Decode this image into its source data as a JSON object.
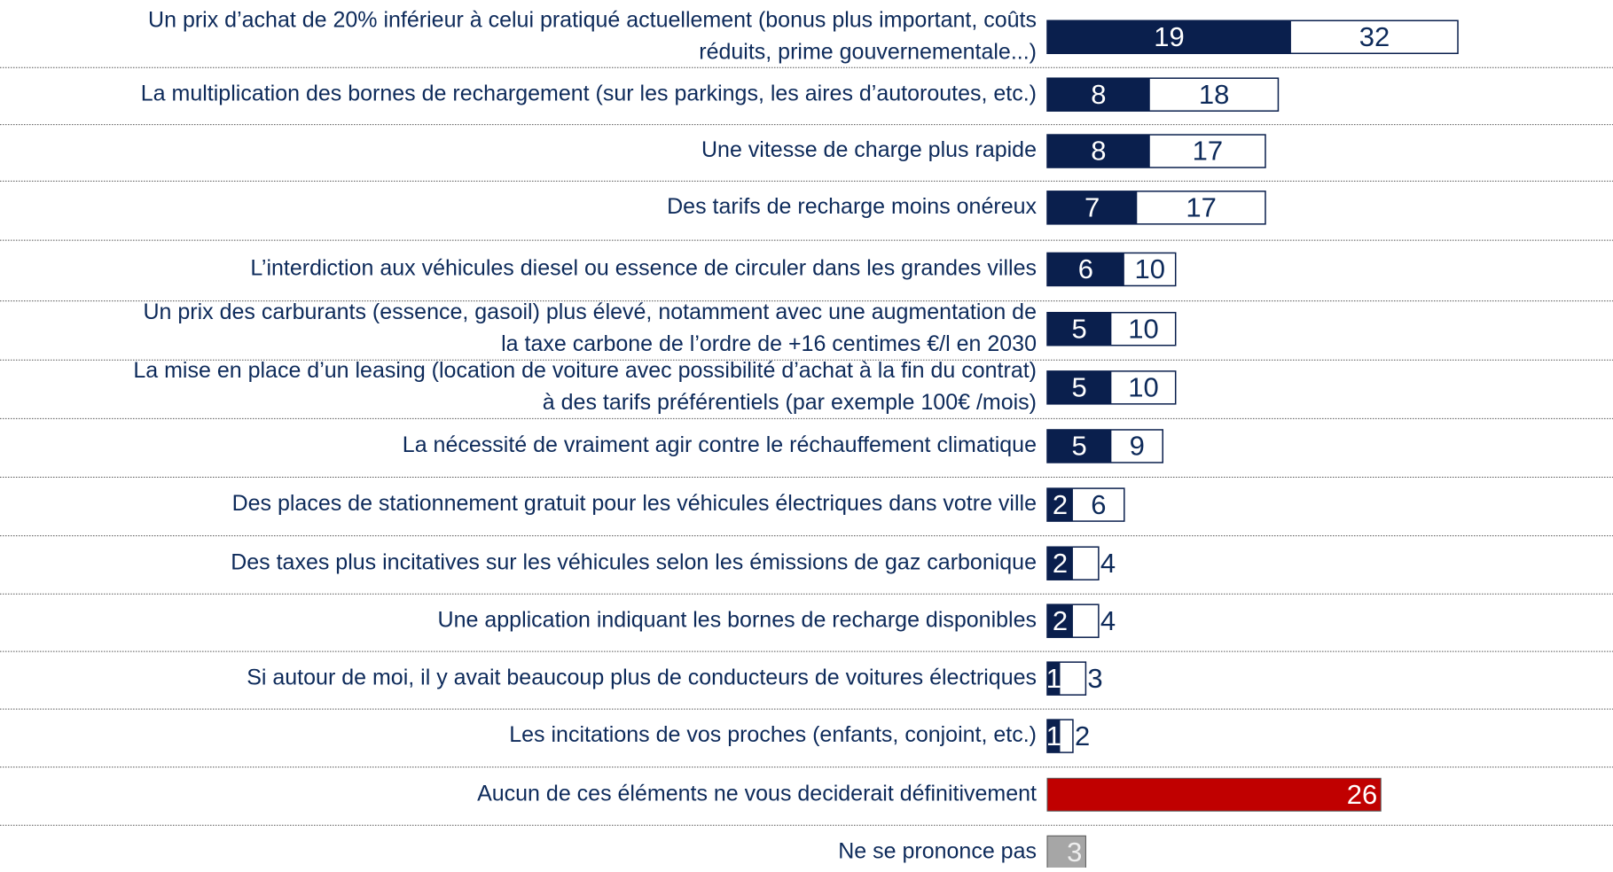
{
  "chart_data": {
    "type": "bar",
    "orientation": "horizontal",
    "categories": [
      [
        "Un prix d’achat de 20% inférieur à celui pratiqué actuellement (bonus plus important, coûts",
        "réduits, prime gouvernementale...)"
      ],
      [
        "La multiplication des bornes de rechargement (sur les parkings, les aires d’autoroutes, etc.)"
      ],
      [
        "Une vitesse de charge plus rapide"
      ],
      [
        "Des tarifs de recharge moins onéreux"
      ],
      [
        "L’interdiction aux véhicules diesel ou essence de circuler dans les grandes villes"
      ],
      [
        "Un prix des carburants (essence, gasoil) plus élevé, notamment avec une augmentation de",
        "la taxe carbone de l’ordre de +16 centimes €/l en 2030"
      ],
      [
        "La mise en place d’un leasing (location de voiture avec possibilité d’achat à la fin du contrat)",
        "à des tarifs préférentiels (par exemple 100€ /mois)"
      ],
      [
        "La nécessité de vraiment agir contre le réchauffement climatique"
      ],
      [
        "Des places de stationnement gratuit pour les véhicules électriques dans votre ville"
      ],
      [
        "Des taxes plus incitatives sur les véhicules selon les émissions de gaz carbonique"
      ],
      [
        "Une application indiquant les bornes de recharge disponibles"
      ],
      [
        "Si autour de moi, il y avait beaucoup plus de conducteurs de voitures électriques"
      ],
      [
        "Les incitations de vos proches (enfants, conjoint, etc.)"
      ],
      [
        "Aucun de ces éléments ne vous deciderait définitivement"
      ],
      [
        "Ne se prononce pas"
      ]
    ],
    "series": [
      {
        "color": "#ffffff",
        "values": [
          32,
          18,
          17,
          17,
          10,
          10,
          10,
          9,
          6,
          4,
          4,
          3,
          2,
          null,
          null
        ]
      },
      {
        "color": "#0a1f4d",
        "values": [
          19,
          8,
          8,
          7,
          6,
          5,
          5,
          5,
          2,
          2,
          2,
          1,
          1,
          null,
          null
        ]
      },
      {
        "color": "#c00000",
        "values": [
          null,
          null,
          null,
          null,
          null,
          null,
          null,
          null,
          null,
          null,
          null,
          null,
          null,
          26,
          null
        ]
      },
      {
        "color": "#a6a6a6",
        "values": [
          null,
          null,
          null,
          null,
          null,
          null,
          null,
          null,
          null,
          null,
          null,
          null,
          null,
          null,
          3
        ]
      }
    ]
  }
}
